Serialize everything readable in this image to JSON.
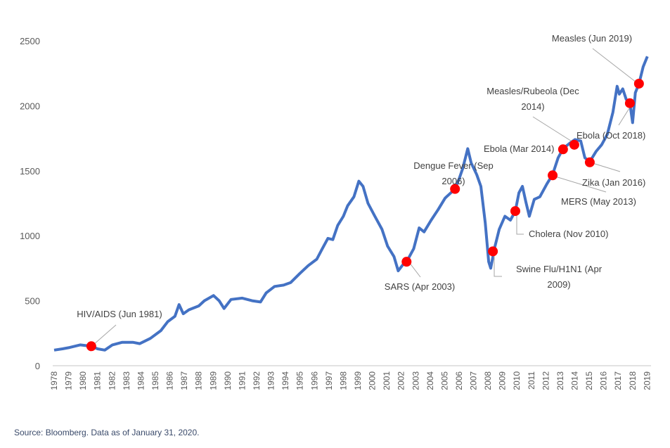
{
  "chart_data": {
    "type": "line",
    "title": "",
    "xlabel": "",
    "ylabel": "",
    "ylim": [
      0,
      2500
    ],
    "yticks": [
      "0",
      "500",
      "1000",
      "1500",
      "2000",
      "2500"
    ],
    "xticks": [
      "1978",
      "1979",
      "1980",
      "1981",
      "1982",
      "1983",
      "1984",
      "1985",
      "1986",
      "1987",
      "1988",
      "1989",
      "1990",
      "1991",
      "1992",
      "1993",
      "1994",
      "1995",
      "1996",
      "1997",
      "1998",
      "1999",
      "2000",
      "2001",
      "2002",
      "2003",
      "2004",
      "2005",
      "2006",
      "2007",
      "2008",
      "2009",
      "2010",
      "2011",
      "2012",
      "2013",
      "2014",
      "2015",
      "2016",
      "2017",
      "2018",
      "2019"
    ],
    "grid": false,
    "line_color": "#4472C4",
    "marker_color": "#FF0000",
    "series": [
      {
        "x": [
          1978.0,
          1978.58,
          1979.07,
          1979.8,
          1980.57,
          1981.01,
          1981.5,
          1982.03,
          1982.71,
          1983.44,
          1983.92,
          1984.65,
          1985.38,
          1985.86,
          1986.35,
          1986.64,
          1986.93,
          1987.32,
          1988.0,
          1988.39,
          1989.02,
          1989.41,
          1989.75,
          1990.23,
          1991.01,
          1991.69,
          1992.27,
          1992.66,
          1993.24,
          1993.87,
          1994.36,
          1994.99,
          1995.57,
          1996.16,
          1996.54,
          1996.93,
          1997.27,
          1997.61,
          1998.0,
          1998.29,
          1998.73,
          1999.07,
          1999.36,
          1999.7,
          2000.18,
          2000.67,
          2001.06,
          2001.5,
          2001.79,
          2002.13,
          2002.37,
          2002.86,
          2003.24,
          2003.58,
          2004.07,
          2004.55,
          2005.04,
          2005.72,
          2006.01,
          2006.26,
          2006.6,
          2006.84,
          2007.22,
          2007.51,
          2007.81,
          2008.05,
          2008.19,
          2008.44,
          2008.78,
          2009.17,
          2009.55,
          2009.89,
          2010.14,
          2010.38,
          2010.62,
          2010.86,
          2011.2,
          2011.59,
          2012.08,
          2012.47,
          2012.85,
          2013.19,
          2013.63,
          2014.02,
          2014.41,
          2014.7,
          2015.04,
          2015.48,
          2015.86,
          2016.25,
          2016.64,
          2016.93,
          2017.08,
          2017.32,
          2017.56,
          2017.81,
          2018.0,
          2018.19,
          2018.44,
          2018.73,
          2019.02
        ],
        "values": [
          120,
          130,
          140,
          160,
          150,
          130,
          120,
          160,
          180,
          180,
          170,
          210,
          270,
          340,
          380,
          470,
          400,
          430,
          460,
          500,
          540,
          500,
          440,
          510,
          520,
          500,
          490,
          560,
          610,
          620,
          640,
          710,
          770,
          820,
          900,
          980,
          970,
          1080,
          1150,
          1230,
          1300,
          1420,
          1380,
          1250,
          1150,
          1050,
          920,
          840,
          730,
          780,
          800,
          900,
          1060,
          1030,
          1120,
          1200,
          1290,
          1360,
          1440,
          1520,
          1670,
          1560,
          1470,
          1380,
          1100,
          800,
          750,
          900,
          1050,
          1150,
          1120,
          1190,
          1330,
          1380,
          1260,
          1150,
          1280,
          1300,
          1400,
          1470,
          1600,
          1670,
          1710,
          1740,
          1730,
          1600,
          1570,
          1650,
          1700,
          1780,
          1950,
          2150,
          2090,
          2130,
          2050,
          2020,
          1870,
          2100,
          2170,
          2300,
          2380
        ]
      }
    ],
    "annotations": [
      {
        "label": [
          "HIV/AIDS (Jun 1981)"
        ],
        "x": 1980.57,
        "y": 150
      },
      {
        "label": [
          "SARS (Apr 2003)"
        ],
        "x": 2002.37,
        "y": 800
      },
      {
        "label": [
          "Dengue Fever (Sep",
          "2006)"
        ],
        "x": 2005.72,
        "y": 1360
      },
      {
        "label": [
          "Swine Flu/H1N1 (Apr",
          "2009)"
        ],
        "x": 2008.34,
        "y": 880
      },
      {
        "label": [
          "Cholera (Nov 2010)"
        ],
        "x": 2009.89,
        "y": 1190
      },
      {
        "label": [
          "MERS (May 2013)"
        ],
        "x": 2012.47,
        "y": 1465
      },
      {
        "label": [
          "Ebola (Mar 2014)"
        ],
        "x": 2013.19,
        "y": 1665
      },
      {
        "label": [
          "Measles/Rubeola (Dec",
          "2014)"
        ],
        "x": 2013.97,
        "y": 1700
      },
      {
        "label": [
          "Zika (Jan 2016)"
        ],
        "x": 2015.04,
        "y": 1565
      },
      {
        "label": [
          "Ebola (Oct 2018)"
        ],
        "x": 2017.81,
        "y": 2020
      },
      {
        "label": [
          "Measles (Jun 2019)"
        ],
        "x": 2018.44,
        "y": 2170
      }
    ]
  },
  "source": "Source: Bloomberg. Data as of January 31, 2020."
}
